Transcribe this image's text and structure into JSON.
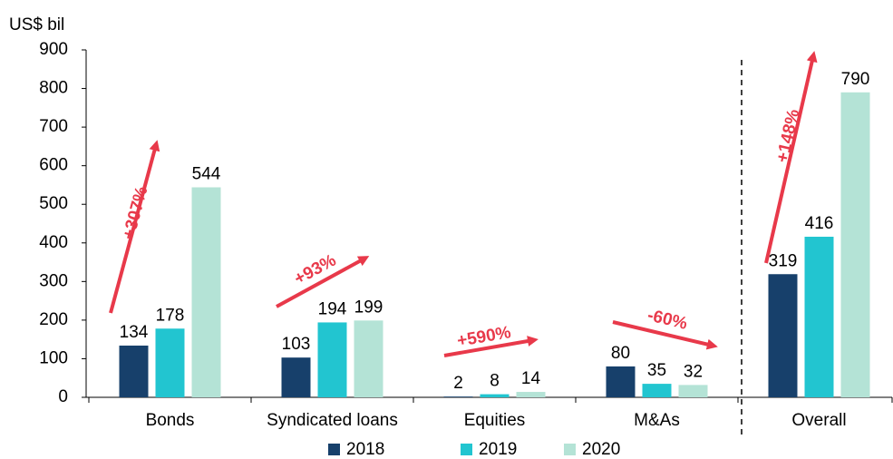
{
  "chart_data": {
    "type": "bar",
    "y_label": "US$ bil",
    "categories": [
      "Bonds",
      "Syndicated loans",
      "Equities",
      "M&As",
      "Overall"
    ],
    "series": [
      {
        "name": "2018",
        "color": "#17406b",
        "values": [
          134,
          103,
          2,
          80,
          319
        ]
      },
      {
        "name": "2019",
        "color": "#22c5d0",
        "values": [
          178,
          194,
          8,
          35,
          416
        ]
      },
      {
        "name": "2020",
        "color": "#b4e3d6",
        "values": [
          544,
          199,
          14,
          32,
          790
        ]
      }
    ],
    "ylim": [
      0,
      900
    ],
    "yticks": [
      0,
      100,
      200,
      300,
      400,
      500,
      600,
      700,
      800,
      900
    ],
    "annotations": [
      "+307%",
      "+93%",
      "+590%",
      "-60%",
      "+148%"
    ]
  }
}
